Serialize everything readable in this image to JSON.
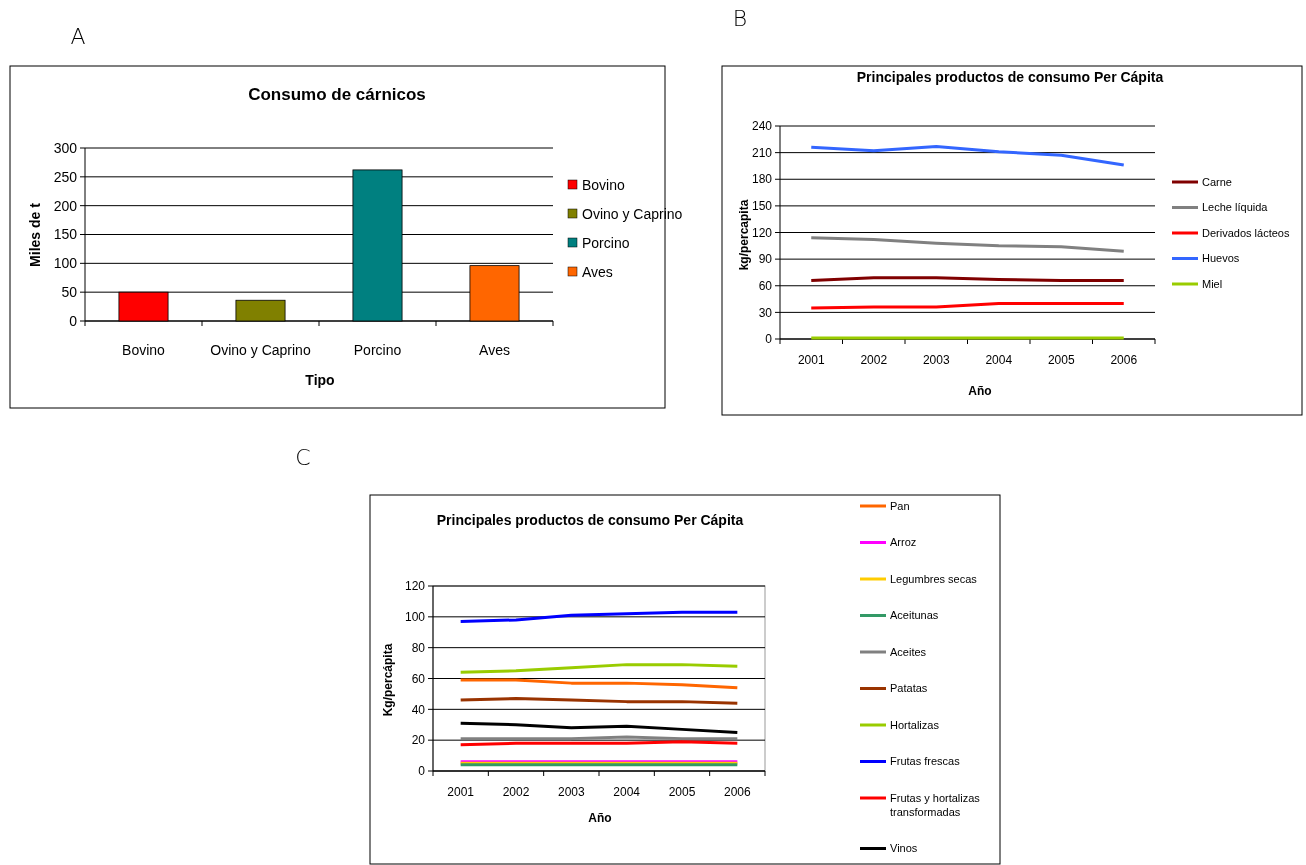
{
  "chart_data": [
    {
      "type": "bar",
      "title": "Consumo de cárnicos",
      "xlabel": "Tipo",
      "ylabel": "Miles de t",
      "annotations": [
        "A"
      ],
      "categories": [
        "Bovino",
        "Ovino y Caprino",
        "Porcino",
        "Aves"
      ],
      "series": [
        {
          "name": "Bovino",
          "color": "#ff0000",
          "values": [
            50,
            null,
            null,
            null
          ]
        },
        {
          "name": "Ovino y Caprino",
          "color": "#808000",
          "values": [
            null,
            36,
            null,
            null
          ]
        },
        {
          "name": "Porcino",
          "color": "#008080",
          "values": [
            null,
            null,
            262,
            null
          ]
        },
        {
          "name": "Aves",
          "color": "#ff6600",
          "values": [
            null,
            null,
            null,
            96
          ]
        }
      ],
      "ylim": [
        0,
        300
      ],
      "yticks": [
        0,
        50,
        100,
        150,
        200,
        250,
        300
      ],
      "grid": "y",
      "legend": "right"
    },
    {
      "type": "line",
      "title": "Principales productos de consumo Per Cápita",
      "xlabel": "Año",
      "ylabel": "kg/percapita",
      "annotations": [
        "B"
      ],
      "categories": [
        "2001",
        "2002",
        "2003",
        "2004",
        "2005",
        "2006"
      ],
      "series": [
        {
          "name": "Carne",
          "color": "#800000",
          "values": [
            66,
            69,
            69,
            67,
            66,
            66
          ]
        },
        {
          "name": "Leche líquida",
          "color": "#808080",
          "values": [
            114,
            112,
            108,
            105,
            104,
            99
          ]
        },
        {
          "name": "Derivados lácteos",
          "color": "#ff0000",
          "values": [
            35,
            36,
            36,
            40,
            40,
            40
          ]
        },
        {
          "name": "Huevos",
          "color": "#3366ff",
          "values": [
            216,
            212,
            217,
            211,
            207,
            196
          ]
        },
        {
          "name": "Miel",
          "color": "#99cc00",
          "values": [
            1,
            1,
            1,
            1,
            1,
            1
          ]
        }
      ],
      "ylim": [
        0,
        240
      ],
      "yticks": [
        0,
        30,
        60,
        90,
        120,
        150,
        180,
        210,
        240
      ],
      "grid": "y",
      "legend": "right",
      "marker": "none"
    },
    {
      "type": "line",
      "title": "Principales productos de consumo Per Cápita",
      "xlabel": "Año",
      "ylabel": "Kg/percápita",
      "annotations": [
        "C"
      ],
      "categories": [
        "2001",
        "2002",
        "2003",
        "2004",
        "2005",
        "2006"
      ],
      "series": [
        {
          "name": "Pan",
          "color": "#ff6600",
          "values": [
            59,
            59,
            57,
            57,
            56,
            54
          ]
        },
        {
          "name": "Arroz",
          "color": "#ff00ff",
          "values": [
            6,
            6,
            6,
            6,
            6,
            6
          ]
        },
        {
          "name": "Legumbres secas",
          "color": "#ffcc00",
          "values": [
            5,
            5,
            5,
            5,
            5,
            5
          ]
        },
        {
          "name": "Aceitunas",
          "color": "#339966",
          "values": [
            4,
            4,
            4,
            4,
            4,
            4
          ]
        },
        {
          "name": "Aceites",
          "color": "#808080",
          "values": [
            21,
            21,
            21,
            22,
            21,
            21
          ]
        },
        {
          "name": "Patatas",
          "color": "#993300",
          "values": [
            46,
            47,
            46,
            45,
            45,
            44
          ]
        },
        {
          "name": "Hortalizas",
          "color": "#99cc00",
          "values": [
            64,
            65,
            67,
            69,
            69,
            68
          ]
        },
        {
          "name": "Frutas frescas",
          "color": "#0000ff",
          "values": [
            97,
            98,
            101,
            102,
            103,
            103
          ]
        },
        {
          "name": "Frutas y hortalizas transformadas",
          "color": "#ff0000",
          "values": [
            17,
            18,
            18,
            18,
            19,
            18
          ]
        },
        {
          "name": "Vinos",
          "color": "#000000",
          "values": [
            31,
            30,
            28,
            29,
            27,
            25
          ]
        }
      ],
      "ylim": [
        0,
        120
      ],
      "yticks": [
        0,
        20,
        40,
        60,
        80,
        100,
        120
      ],
      "grid": "y",
      "legend": "right",
      "marker": "none"
    }
  ]
}
